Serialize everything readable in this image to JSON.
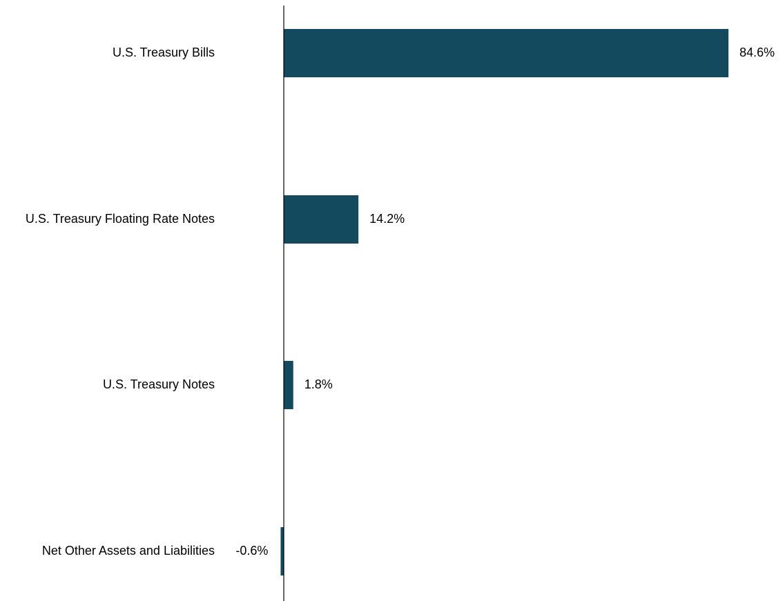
{
  "chart_data": {
    "type": "bar",
    "orientation": "horizontal",
    "title": "",
    "xlabel": "",
    "ylabel": "",
    "categories": [
      "U.S. Treasury Bills",
      "U.S. Treasury Floating Rate Notes",
      "U.S. Treasury Notes",
      "Net Other Assets and Liabilities"
    ],
    "values": [
      84.6,
      14.2,
      1.8,
      -0.6
    ],
    "value_labels": [
      "84.6%",
      "14.2%",
      "1.8%",
      "-0.6%"
    ],
    "unit": "%",
    "xlim": [
      0,
      84.6
    ],
    "grid": false,
    "legend": "none",
    "bar_color": "#134a5e",
    "axis_color": "#000000"
  }
}
